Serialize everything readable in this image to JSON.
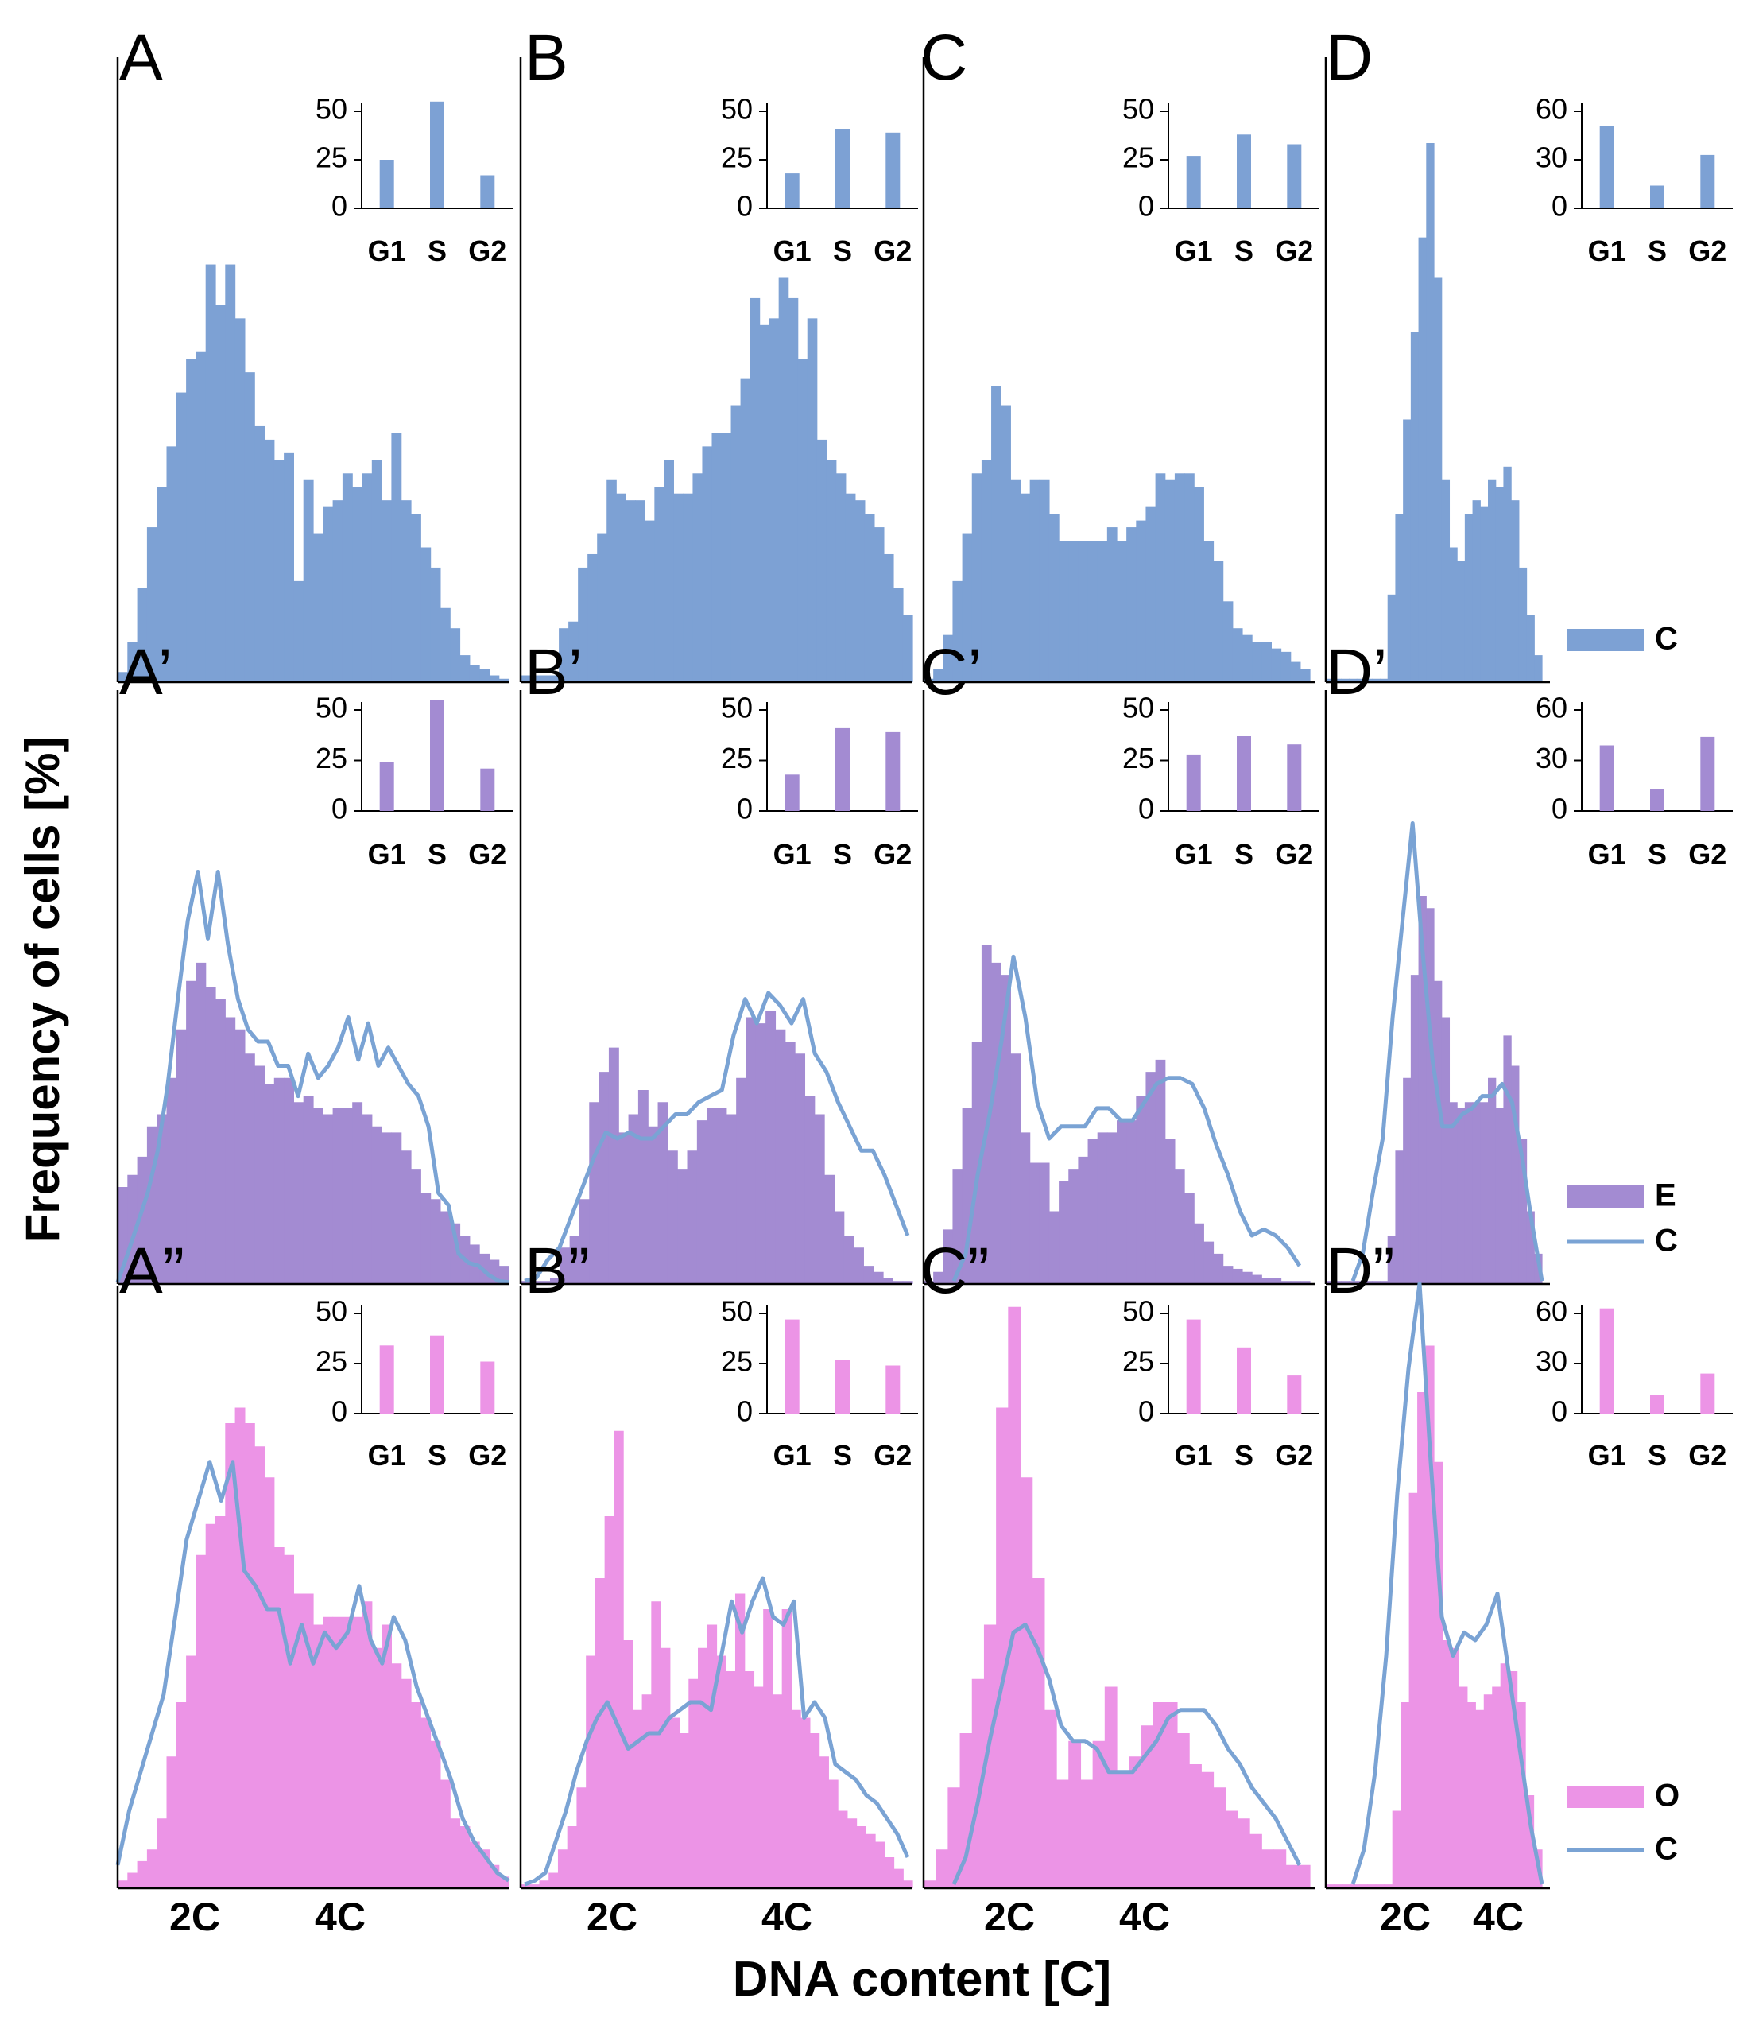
{
  "figure": {
    "ylabel": "Frequency of cells [%]",
    "xlabel": "DNA content [C]"
  },
  "colors": {
    "C": "#7da1d4",
    "E": "#a38bd2",
    "O": "#ec94e6",
    "line": "#7aa3d4",
    "axis": "#000000"
  },
  "chart_data": {
    "type": "bar",
    "description": "Flow cytometry DNA content histograms with cell-cycle phase insets",
    "x_tick_labels": [
      "2C",
      "4C"
    ],
    "row_legends": [
      [
        {
          "label": "C",
          "kind": "bar",
          "color_key": "C"
        }
      ],
      [
        {
          "label": "E",
          "kind": "bar",
          "color_key": "E"
        },
        {
          "label": "C",
          "kind": "line",
          "color_key": "line"
        }
      ],
      [
        {
          "label": "O",
          "kind": "bar",
          "color_key": "O"
        },
        {
          "label": "C",
          "kind": "line",
          "color_key": "line"
        }
      ]
    ],
    "panels": [
      {
        "label": "A",
        "fill": "C",
        "inset": {
          "categories": [
            "G1",
            "S",
            "G2"
          ],
          "values": [
            25,
            55,
            17
          ],
          "ylim": [
            0,
            50
          ],
          "yticks": [
            0,
            25,
            50
          ]
        },
        "bars": [
          1.5,
          6,
          14,
          23,
          29,
          35,
          43,
          48,
          49,
          62,
          56,
          62,
          54,
          46,
          38,
          36,
          33,
          34,
          15,
          30,
          22,
          26,
          27,
          31,
          29,
          31,
          33,
          27,
          37,
          27,
          25,
          20,
          17,
          11,
          8,
          4,
          2.5,
          2,
          1,
          0.5
        ]
      },
      {
        "label": "B",
        "fill": "C",
        "inset": {
          "categories": [
            "G1",
            "S",
            "G2"
          ],
          "values": [
            18,
            41,
            39
          ],
          "ylim": [
            0,
            50
          ],
          "yticks": [
            0,
            25,
            50
          ]
        },
        "bars": [
          1,
          1,
          1,
          1,
          8,
          9,
          17,
          19,
          22,
          30,
          28,
          27,
          27,
          24,
          29,
          33,
          28,
          28,
          31,
          35,
          37,
          37,
          41,
          45,
          57,
          53,
          54,
          60,
          57,
          48,
          54,
          36,
          33,
          31,
          28,
          27,
          25,
          23,
          19,
          14,
          10
        ]
      },
      {
        "label": "C",
        "fill": "C",
        "inset": {
          "categories": [
            "G1",
            "S",
            "G2"
          ],
          "values": [
            27,
            38,
            33
          ],
          "ylim": [
            0,
            50
          ],
          "yticks": [
            0,
            25,
            50
          ]
        },
        "bars": [
          0.5,
          2,
          7,
          15,
          22,
          31,
          33,
          44,
          41,
          30,
          28,
          30,
          30,
          25,
          21,
          21,
          21,
          21,
          21,
          23,
          21,
          23,
          24,
          26,
          31,
          30,
          31,
          31,
          29,
          21,
          18,
          12,
          8,
          7,
          6,
          6,
          5,
          4.5,
          3,
          2
        ]
      },
      {
        "label": "D",
        "fill": "C",
        "inset": {
          "categories": [
            "G1",
            "S",
            "G2"
          ],
          "values": [
            51,
            14,
            33
          ],
          "ylim": [
            0,
            60
          ],
          "yticks": [
            0,
            30,
            60
          ]
        },
        "bars": [
          0.5,
          0.5,
          0.5,
          0.5,
          0.5,
          0.5,
          0.5,
          0.5,
          13,
          25,
          39,
          52,
          66,
          80,
          60,
          30,
          20,
          18,
          25,
          27,
          26,
          30,
          29,
          32,
          27,
          17,
          10,
          4
        ]
      },
      {
        "label": "A’",
        "fill": "E",
        "inset": {
          "categories": [
            "G1",
            "S",
            "G2"
          ],
          "values": [
            24,
            55,
            21
          ],
          "ylim": [
            0,
            50
          ],
          "yticks": [
            0,
            25,
            50
          ]
        },
        "bars": [
          16,
          18,
          21,
          26,
          28,
          34,
          42,
          50,
          53,
          49,
          47,
          44,
          42,
          38,
          36,
          33,
          34,
          34,
          30,
          31,
          29,
          28,
          29,
          29,
          30,
          28,
          26,
          25,
          25,
          22,
          19,
          15,
          14,
          12,
          10,
          8,
          6.5,
          5,
          4,
          3
        ],
        "line": [
          0.3,
          5,
          10,
          15,
          22,
          33,
          47,
          60,
          68,
          57,
          68,
          56,
          47,
          42,
          40,
          40,
          36,
          36,
          31,
          38,
          34,
          36,
          39,
          44,
          37,
          43,
          36,
          39,
          36,
          33,
          31,
          26,
          15,
          13,
          5,
          3.5,
          3,
          1.5,
          0.5,
          0.3
        ]
      },
      {
        "label": "B’",
        "fill": "E",
        "inset": {
          "categories": [
            "G1",
            "S",
            "G2"
          ],
          "values": [
            18,
            41,
            39
          ],
          "ylim": [
            0,
            50
          ],
          "yticks": [
            0,
            25,
            50
          ]
        },
        "bars": [
          0.5,
          0.5,
          0.5,
          1,
          6,
          8,
          14,
          30,
          35,
          39,
          25,
          28,
          32,
          26,
          30,
          22,
          19,
          22,
          27,
          29,
          29,
          28,
          34,
          44,
          43,
          45,
          42,
          40,
          38,
          31,
          28,
          18,
          12,
          8,
          6,
          3,
          2,
          1,
          0.5,
          0.5
        ],
        "line": [
          0.5,
          1,
          4,
          6,
          11,
          16,
          21,
          25,
          24,
          25,
          24,
          24,
          26,
          28,
          28,
          30,
          31,
          32,
          41,
          47,
          43,
          48,
          46,
          43,
          47,
          38,
          35,
          30,
          26,
          22,
          22,
          18,
          13,
          8
        ]
      },
      {
        "label": "C’",
        "fill": "E",
        "inset": {
          "categories": [
            "G1",
            "S",
            "G2"
          ],
          "values": [
            28,
            37,
            33
          ],
          "ylim": [
            0,
            50
          ],
          "yticks": [
            0,
            25,
            50
          ]
        },
        "bars": [
          0.5,
          2,
          9,
          19,
          29,
          40,
          56,
          53,
          51,
          38,
          25,
          20,
          20,
          12,
          17,
          19,
          21,
          24,
          25,
          25,
          27,
          27,
          31,
          35,
          37,
          24,
          19,
          15,
          10,
          7,
          5,
          3,
          2.5,
          2,
          1.5,
          1,
          1,
          0.5,
          0.5,
          0.5
        ],
        "line": [
          0.5,
          5,
          18,
          28,
          40,
          54,
          44,
          30,
          24,
          26,
          26,
          26,
          29,
          29,
          27,
          27,
          30,
          33,
          34,
          34,
          33,
          29,
          23,
          18,
          12,
          8,
          9,
          8,
          6,
          3
        ]
      },
      {
        "label": "D’",
        "fill": "E",
        "inset": {
          "categories": [
            "G1",
            "S",
            "G2"
          ],
          "values": [
            39,
            13,
            44
          ],
          "ylim": [
            0,
            60
          ],
          "yticks": [
            0,
            30,
            60
          ]
        },
        "bars": [
          0.5,
          0.5,
          0.5,
          0.5,
          0.5,
          0.5,
          0.5,
          0.5,
          8,
          22,
          34,
          51,
          64,
          62,
          50,
          44,
          30,
          29,
          30,
          30,
          30,
          34,
          29,
          41,
          36,
          24,
          12,
          5
        ],
        "line": [
          0.5,
          5,
          15,
          24,
          44,
          60,
          76,
          55,
          37,
          26,
          26,
          28,
          29,
          31,
          31,
          33,
          30,
          21,
          10,
          0.5
        ]
      },
      {
        "label": "A”",
        "fill": "O",
        "inset": {
          "categories": [
            "G1",
            "S",
            "G2"
          ],
          "values": [
            34,
            39,
            26
          ],
          "ylim": [
            0,
            50
          ],
          "yticks": [
            0,
            25,
            50
          ]
        },
        "bars": [
          1,
          2,
          3.5,
          5,
          9,
          17,
          24,
          30,
          43,
          47,
          48,
          60,
          62,
          60,
          57,
          53,
          44,
          43,
          38,
          38,
          34,
          35,
          35,
          35,
          35,
          37,
          31,
          34,
          29,
          27,
          24,
          22,
          19,
          14,
          9,
          8,
          6,
          5,
          3,
          1.5
        ],
        "line": [
          3,
          10,
          15,
          20,
          25,
          35,
          45,
          50,
          55,
          50,
          55,
          41,
          39,
          36,
          36,
          29,
          34,
          29,
          33,
          31,
          33,
          39,
          32,
          29,
          35,
          32,
          26,
          22,
          18,
          14,
          9,
          6,
          4,
          2,
          1
        ]
      },
      {
        "label": "B”",
        "fill": "O",
        "inset": {
          "categories": [
            "G1",
            "S",
            "G2"
          ],
          "values": [
            47,
            27,
            24
          ],
          "ylim": [
            0,
            50
          ],
          "yticks": [
            0,
            25,
            50
          ]
        },
        "bars": [
          0.5,
          0.5,
          1,
          2,
          5,
          8,
          13,
          30,
          40,
          48,
          59,
          32,
          23,
          25,
          37,
          31,
          22,
          20,
          27,
          31,
          34,
          30,
          28,
          38,
          28,
          26,
          36,
          25,
          36,
          23,
          22,
          20,
          17,
          14,
          10,
          9,
          8,
          7,
          6,
          4,
          2.5,
          1
        ],
        "line": [
          0.5,
          1,
          2,
          6,
          10,
          15,
          19,
          22,
          24,
          21,
          18,
          19,
          20,
          20,
          22,
          23,
          24,
          24,
          23,
          30,
          37,
          33,
          37,
          40,
          35,
          34,
          37,
          22,
          24,
          22,
          16,
          15,
          14,
          12,
          11,
          9,
          7,
          4
        ]
      },
      {
        "label": "C”",
        "fill": "O",
        "inset": {
          "categories": [
            "G1",
            "S",
            "G2"
          ],
          "values": [
            47,
            33,
            19
          ],
          "ylim": [
            0,
            50
          ],
          "yticks": [
            0,
            25,
            50
          ]
        },
        "bars": [
          1,
          5,
          13,
          20,
          27,
          34,
          62,
          75,
          53,
          40,
          23,
          14,
          19,
          14,
          19,
          26,
          15,
          17,
          21,
          24,
          24,
          20,
          16,
          15,
          13,
          10,
          9,
          7,
          5,
          5,
          3,
          3
        ],
        "line": [
          0.5,
          4,
          11,
          19,
          26,
          33,
          34,
          31,
          27,
          21,
          19,
          19,
          18,
          15,
          15,
          15,
          17,
          19,
          22,
          23,
          23,
          23,
          21,
          18,
          16,
          13,
          11,
          9,
          6,
          3
        ]
      },
      {
        "label": "D”",
        "fill": "O",
        "inset": {
          "categories": [
            "G1",
            "S",
            "G2"
          ],
          "values": [
            63,
            11,
            24
          ],
          "ylim": [
            0,
            60
          ],
          "yticks": [
            0,
            30,
            60
          ]
        },
        "bars": [
          0.5,
          0.5,
          0.5,
          0.5,
          0.5,
          0.5,
          0.5,
          0.5,
          10,
          24,
          51,
          64,
          70,
          55,
          32,
          31,
          26,
          24,
          23,
          25,
          26,
          29,
          28,
          24,
          12,
          5
        ],
        "line": [
          0.5,
          5,
          15,
          30,
          51,
          67,
          78,
          55,
          35,
          30,
          33,
          32,
          34,
          38,
          28,
          18,
          8,
          0.5
        ]
      }
    ]
  }
}
